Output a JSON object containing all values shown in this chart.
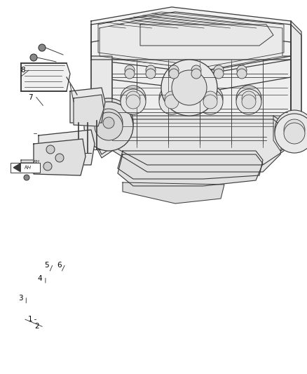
{
  "background_color": "#ffffff",
  "figure_width": 4.38,
  "figure_height": 5.33,
  "dpi": 100,
  "line_color": "#3a3a3a",
  "text_color": "#000000",
  "label_fontsize": 7.5,
  "callouts_top": [
    [
      1,
      0.098,
      0.854,
      0.112,
      0.854
    ],
    [
      2,
      0.119,
      0.873,
      0.082,
      0.854
    ],
    [
      3,
      0.067,
      0.797,
      0.085,
      0.81
    ],
    [
      4,
      0.13,
      0.744,
      0.148,
      0.756
    ],
    [
      5,
      0.152,
      0.71,
      0.163,
      0.724
    ],
    [
      6,
      0.192,
      0.71,
      0.202,
      0.724
    ]
  ],
  "callouts_bottom": [
    [
      7,
      0.1,
      0.26,
      0.14,
      0.282
    ],
    [
      8,
      0.075,
      0.188,
      0.068,
      0.205
    ]
  ],
  "arrow_icon": [
    0.085,
    0.448
  ]
}
